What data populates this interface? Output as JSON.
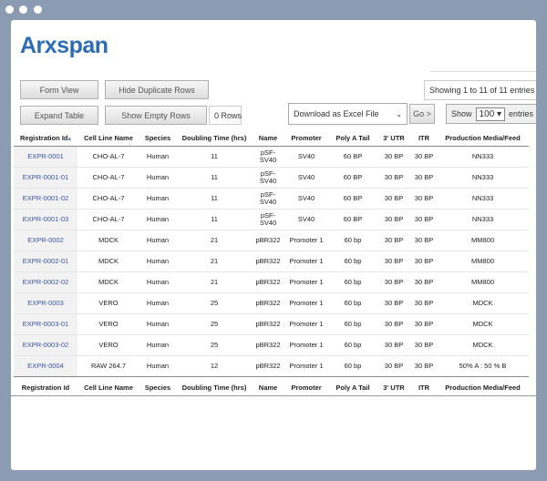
{
  "app": {
    "logo": "Arxspan"
  },
  "toolbar": {
    "form_view": "Form View",
    "hide_duplicate_rows": "Hide Duplicate Rows",
    "expand_table": "Expand Table",
    "show_empty_rows": "Show Empty Rows",
    "empty_rows_count": "0 Rows",
    "export_select": "Download as Excel File",
    "go_button": "Go >",
    "showing_info": "Showing 1 to 11 of 11 entries",
    "length_prefix": "Show",
    "length_value": "100",
    "length_suffix": "entries"
  },
  "table": {
    "columns": [
      "Registration Id",
      "Cell Line Name",
      "Species",
      "Doubling Time (hrs)",
      "Name",
      "Promoter",
      "Poly A Tail",
      "3' UTR",
      "ITR",
      "Production Media/Feed"
    ],
    "rows": [
      [
        "EXPR-0001",
        "CHO-AL-7",
        "Human",
        11,
        "pSF-SV40",
        "SV40",
        "60 BP",
        "30 BP",
        "30 BP",
        "NN333"
      ],
      [
        "EXPR-0001-01",
        "CHO-AL-7",
        "Human",
        11,
        "pSF-SV40",
        "SV40",
        "60 BP",
        "30 BP",
        "30 BP",
        "NN333"
      ],
      [
        "EXPR-0001-02",
        "CHO-AL-7",
        "Human",
        11,
        "pSF-SV40",
        "SV40",
        "60 BP",
        "30 BP",
        "30 BP",
        "NN333"
      ],
      [
        "EXPR-0001-03",
        "CHO-AL-7",
        "Human",
        11,
        "pSF-SV40",
        "SV40",
        "60 BP",
        "30 BP",
        "30 BP",
        "NN333"
      ],
      [
        "EXPR-0002",
        "MDCK",
        "Human",
        21,
        "pBR322",
        "Promoter 1",
        "60 bp",
        "30 BP",
        "30 BP",
        "MM800"
      ],
      [
        "EXPR-0002-01",
        "MDCK",
        "Human",
        21,
        "pBR322",
        "Promoter 1",
        "60 bp",
        "30 BP",
        "30 BP",
        "MM800"
      ],
      [
        "EXPR-0002-02",
        "MDCK",
        "Human",
        21,
        "pBR322",
        "Promoter 1",
        "60 bp",
        "30 BP",
        "30 BP",
        "MM800"
      ],
      [
        "EXPR-0003",
        "VERO",
        "Human",
        25,
        "pBR322",
        "Promoter 1",
        "60 bp",
        "30 BP",
        "30 BP",
        "MDCK"
      ],
      [
        "EXPR-0003-01",
        "VERO",
        "Human",
        25,
        "pBR322",
        "Promoter 1",
        "60 bp",
        "30 BP",
        "30 BP",
        "MDCK"
      ],
      [
        "EXPR-0003-02",
        "VERO",
        "Human",
        25,
        "pBR322",
        "Promoter 1",
        "60 bp",
        "30 BP",
        "30 BP",
        "MDCK"
      ],
      [
        "EXPR-0004",
        "RAW 264.7",
        "Human",
        12,
        "pBR322",
        "Promoter 1",
        "60 bp",
        "30 BP",
        "30 BP",
        "50% A : 50 % B"
      ]
    ]
  }
}
